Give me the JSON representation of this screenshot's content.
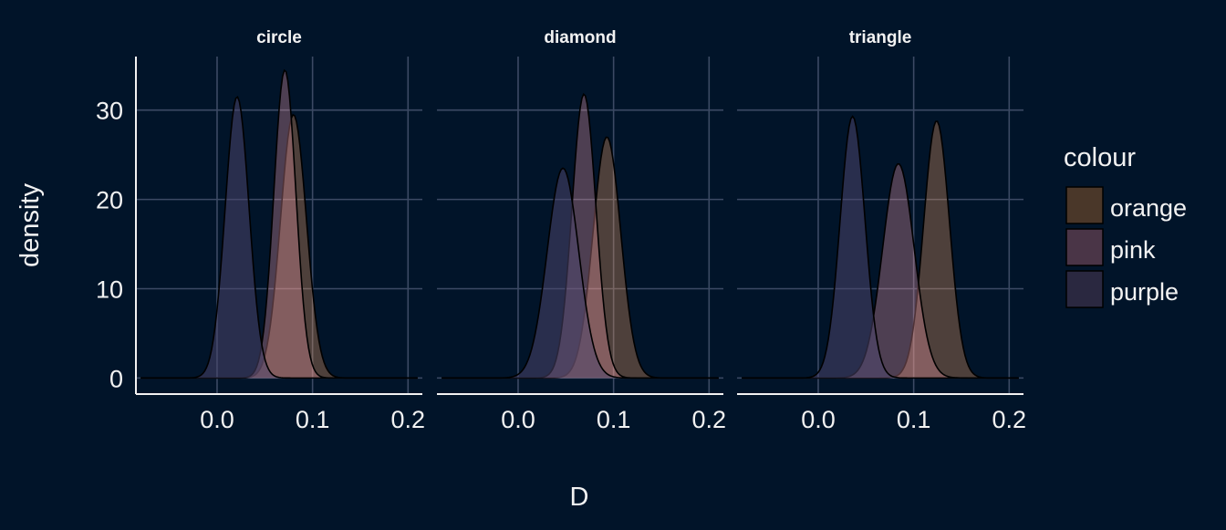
{
  "chart_data": {
    "type": "area",
    "subtype": "density",
    "title": "",
    "xlabel": "D",
    "ylabel": "density",
    "facets": [
      "circle",
      "diamond",
      "triangle"
    ],
    "xlim": [
      -0.085,
      0.215
    ],
    "ylim": [
      -1.8,
      36
    ],
    "x_ticks": [
      {
        "value": 0.0,
        "label": "0.0"
      },
      {
        "value": 0.1,
        "label": "0.1"
      },
      {
        "value": 0.2,
        "label": "0.2"
      }
    ],
    "y_ticks": [
      {
        "value": 0,
        "label": "0"
      },
      {
        "value": 10,
        "label": "10"
      },
      {
        "value": 20,
        "label": "20"
      },
      {
        "value": 30,
        "label": "30"
      }
    ],
    "grid": true,
    "legend": {
      "title": "colour",
      "position": "right",
      "entries": [
        {
          "label": "orange",
          "color": "#4a3729"
        },
        {
          "label": "pink",
          "color": "#4a3547"
        },
        {
          "label": "purple",
          "color": "#2a2840"
        }
      ]
    },
    "colors": {
      "background": "#011429",
      "grid": "#3c4a64",
      "axis": "#f2f2f2",
      "orange_fill": "#f2a063",
      "pink_fill": "#f29aaa",
      "purple_fill": "#4e4770",
      "outline": "#000000"
    },
    "x_range_data": [
      -0.08,
      0.21
    ],
    "panels": [
      {
        "facet": "circle",
        "series": [
          {
            "name": "orange",
            "peak_x": 0.08,
            "peak_y": 29.5,
            "sd": 0.0135
          },
          {
            "name": "pink",
            "peak_x": 0.071,
            "peak_y": 34.5,
            "sd": 0.0115
          },
          {
            "name": "purple",
            "peak_x": 0.021,
            "peak_y": 31.5,
            "sd": 0.0125
          }
        ]
      },
      {
        "facet": "diamond",
        "series": [
          {
            "name": "orange",
            "peak_x": 0.093,
            "peak_y": 27.0,
            "sd": 0.0145
          },
          {
            "name": "pink",
            "peak_x": 0.069,
            "peak_y": 31.8,
            "sd": 0.0125
          },
          {
            "name": "purple",
            "peak_x": 0.047,
            "peak_y": 23.5,
            "sd": 0.0165
          }
        ]
      },
      {
        "facet": "triangle",
        "series": [
          {
            "name": "orange",
            "peak_x": 0.124,
            "peak_y": 28.8,
            "sd": 0.0135
          },
          {
            "name": "pink",
            "peak_x": 0.084,
            "peak_y": 24.0,
            "sd": 0.0165
          },
          {
            "name": "purple",
            "peak_x": 0.036,
            "peak_y": 29.3,
            "sd": 0.013
          }
        ]
      }
    ]
  }
}
